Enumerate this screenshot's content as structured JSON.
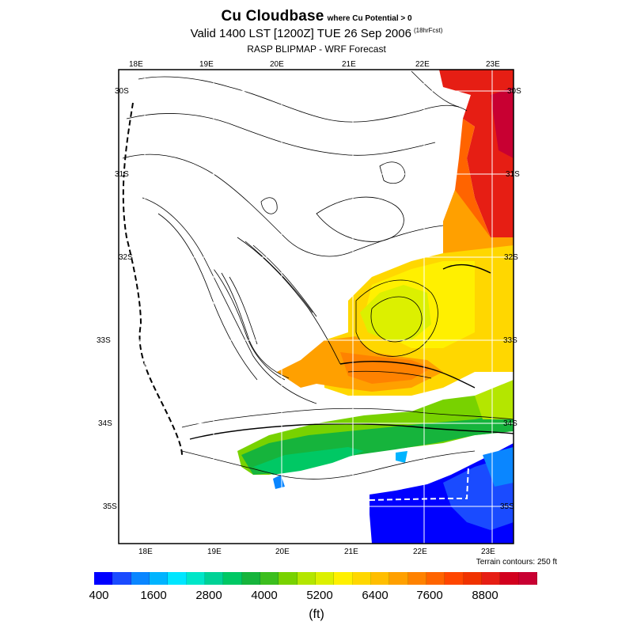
{
  "title": {
    "main": "Cu Cloudbase",
    "condition": "where Cu Potential > 0",
    "valid": "Valid 1400 LST [1200Z] TUE 26 Sep 2006",
    "forecast_hours": "(18hrFcst)",
    "model": "RASP BLIPMAP - WRF Forecast"
  },
  "axes": {
    "top_lon_labels": [
      "18E",
      "19E",
      "20E",
      "21E",
      "22E",
      "23E"
    ],
    "bottom_lon_labels": [
      "18E",
      "19E",
      "20E",
      "21E",
      "22E",
      "23E"
    ],
    "left_lat_labels": [
      "30S",
      "31S",
      "32S",
      "33S",
      "34S",
      "35S"
    ],
    "right_lat_labels": [
      "30S",
      "31S",
      "32S",
      "33S",
      "34S",
      "35S"
    ]
  },
  "terrain_note": "Terrain contours: 250 ft",
  "colorbar": {
    "unit": "(ft)",
    "min": 400,
    "max": 10000,
    "step": 400,
    "tick_labels": [
      "400",
      "1600",
      "2800",
      "4000",
      "5200",
      "6400",
      "7600",
      "8800"
    ],
    "colors": [
      "#0000ff",
      "#1a4bff",
      "#0a86ff",
      "#00b4ff",
      "#00e6ff",
      "#00e6c8",
      "#00d296",
      "#00c864",
      "#16b43c",
      "#3cbe1e",
      "#78d200",
      "#b4e600",
      "#dcf000",
      "#fff000",
      "#ffd700",
      "#ffbe00",
      "#ffa000",
      "#ff8200",
      "#ff6400",
      "#ff4600",
      "#f03200",
      "#e61e14",
      "#d2001e",
      "#c80032"
    ]
  }
}
